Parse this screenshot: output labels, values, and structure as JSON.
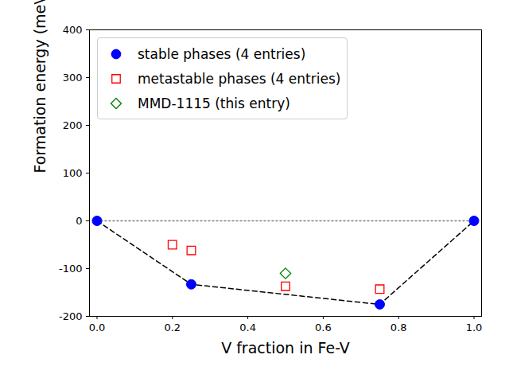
{
  "chart_data": {
    "type": "scatter",
    "x_label": "V fraction in Fe-V",
    "y_label": "Formation energy (meV/atom)",
    "xlim": [
      -0.02,
      1.02
    ],
    "ylim": [
      -200,
      400
    ],
    "xticks": [
      {
        "value": 0,
        "label": "0.0"
      },
      {
        "value": 0.2,
        "label": "0.2"
      },
      {
        "value": 0.4,
        "label": "0.4"
      },
      {
        "value": 0.6,
        "label": "0.6"
      },
      {
        "value": 0.8,
        "label": "0.8"
      },
      {
        "value": 1,
        "label": "1.0"
      }
    ],
    "yticks": [
      -200,
      -100,
      0,
      100,
      200,
      300,
      400
    ],
    "legend": "upper left",
    "series": [
      {
        "type": "line",
        "line_style": "dotted",
        "color": "gray",
        "x": [
          0,
          1
        ],
        "values": [
          0,
          0
        ]
      },
      {
        "type": "line",
        "line_style": "dashed",
        "color": "black",
        "x": [
          0,
          0.25,
          0.75,
          1
        ],
        "values": [
          0,
          -133,
          -175,
          0
        ]
      },
      {
        "name": "stable phases (4 entries)",
        "type": "scatter",
        "marker": "circle",
        "color": "#0000ff",
        "x": [
          0,
          0.25,
          0.75,
          1
        ],
        "values": [
          0,
          -133,
          -175,
          0
        ]
      },
      {
        "name": "metastable phases (4 entries)",
        "type": "scatter",
        "marker": "square-open",
        "color": "#ff0000",
        "x": [
          0.2,
          0.25,
          0.5,
          0.75
        ],
        "values": [
          -50,
          -62,
          -137,
          -143
        ]
      },
      {
        "name": "MMD-1115 (this entry)",
        "type": "scatter",
        "marker": "diamond-open",
        "color": "#008000",
        "x": [
          0.5
        ],
        "values": [
          -110
        ]
      }
    ]
  }
}
